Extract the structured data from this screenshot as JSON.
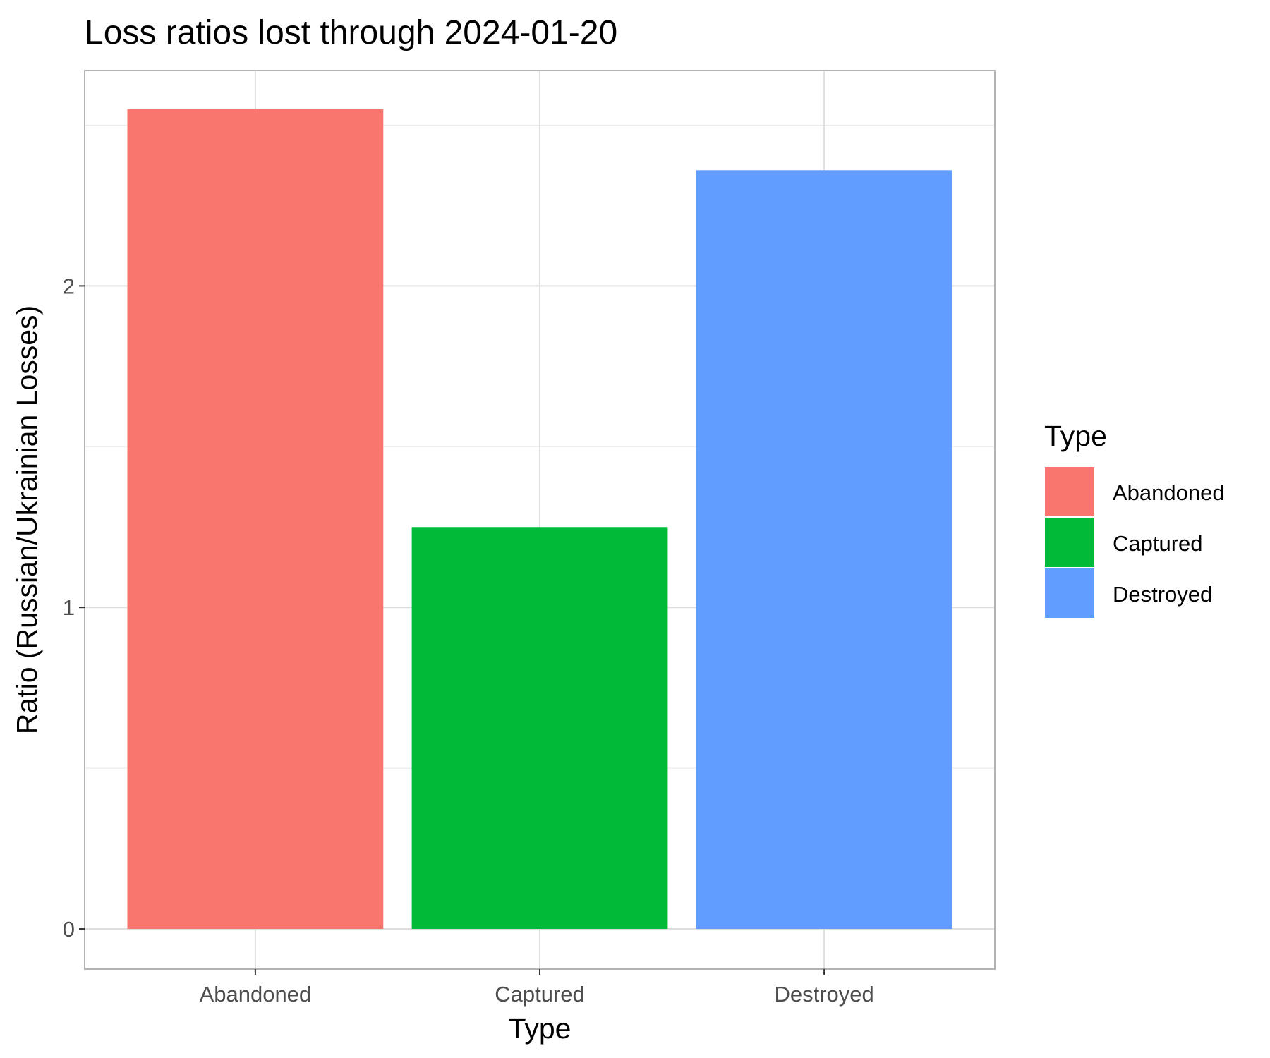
{
  "chart_data": {
    "type": "bar",
    "title": "Loss ratios lost through 2024-01-20",
    "xlabel": "Type",
    "ylabel": "Ratio (Russian/Ukrainian Losses)",
    "categories": [
      "Abandoned",
      "Captured",
      "Destroyed"
    ],
    "values": [
      2.55,
      1.25,
      2.36
    ],
    "colors": [
      "#F8766D",
      "#00BA38",
      "#619CFF"
    ],
    "ylim": [
      -0.125,
      2.67
    ],
    "yticks": [
      0,
      1,
      2
    ],
    "ytick_labels": [
      "0",
      "1",
      "2"
    ],
    "grid": true,
    "legend": {
      "title": "Type",
      "position": "right",
      "entries": [
        "Abandoned",
        "Captured",
        "Destroyed"
      ]
    }
  }
}
